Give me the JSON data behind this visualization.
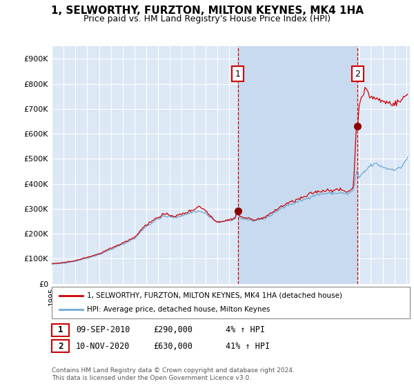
{
  "title": "1, SELWORTHY, FURZTON, MILTON KEYNES, MK4 1HA",
  "subtitle": "Price paid vs. HM Land Registry's House Price Index (HPI)",
  "ylabel_ticks": [
    "£0",
    "£100K",
    "£200K",
    "£300K",
    "£400K",
    "£500K",
    "£600K",
    "£700K",
    "£800K",
    "£900K"
  ],
  "ytick_values": [
    0,
    100000,
    200000,
    300000,
    400000,
    500000,
    600000,
    700000,
    800000,
    900000
  ],
  "ylim": [
    0,
    950000
  ],
  "xlim_start": 1995.3,
  "xlim_end": 2025.3,
  "background_color": "#dce8f5",
  "plot_bg_color": "#dce8f5",
  "grid_color": "#ffffff",
  "shade_color": "#c8daf0",
  "hpi_line_color": "#6fa8d4",
  "price_line_color": "#cc0000",
  "t1x": 2010.75,
  "t2x": 2020.88,
  "t1y": 290000,
  "t2y": 630000,
  "legend_entry1": "1, SELWORTHY, FURZTON, MILTON KEYNES, MK4 1HA (detached house)",
  "legend_entry2": "HPI: Average price, detached house, Milton Keynes",
  "annotation1_date": "09-SEP-2010",
  "annotation1_price": "£290,000",
  "annotation1_hpi": "4% ↑ HPI",
  "annotation2_date": "10-NOV-2020",
  "annotation2_price": "£630,000",
  "annotation2_hpi": "41% ↑ HPI",
  "footnote": "Contains HM Land Registry data © Crown copyright and database right 2024.\nThis data is licensed under the Open Government Licence v3.0."
}
